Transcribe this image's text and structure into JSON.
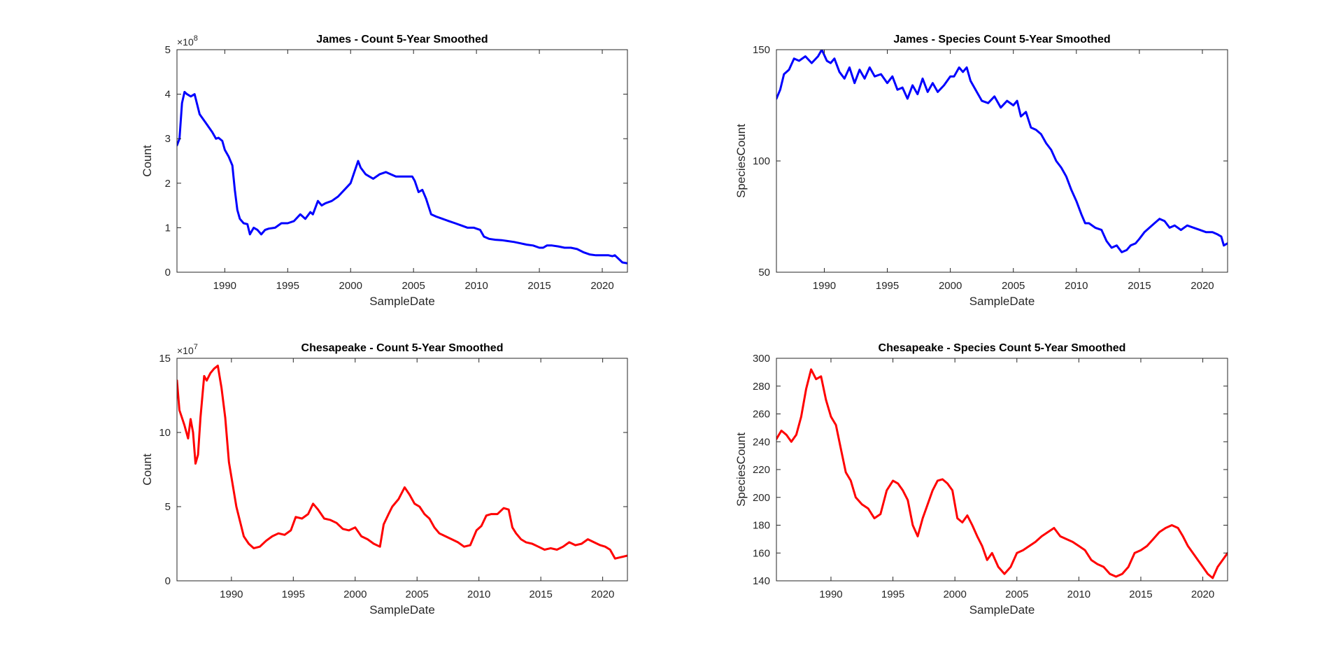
{
  "figure": {
    "background": "#ffffff",
    "axis_color": "#262626"
  },
  "chart_data": [
    {
      "type": "line",
      "title": "James - Count 5-Year Smoothed",
      "xlabel": "SampleDate",
      "ylabel": "Count",
      "xlim": [
        1986.2,
        2022.0
      ],
      "ylim": [
        0,
        5
      ],
      "y_multiplier": "×10^8",
      "y_multiplier_base": "×10",
      "y_multiplier_exp": "8",
      "xticks": [
        1990,
        1995,
        2000,
        2005,
        2010,
        2015,
        2020
      ],
      "xtick_labels": [
        "1990",
        "1995",
        "2000",
        "2005",
        "2010",
        "2015",
        "2020"
      ],
      "yticks": [
        0,
        1,
        2,
        3,
        4,
        5
      ],
      "ytick_labels": [
        "0",
        "1",
        "2",
        "3",
        "4",
        "5"
      ],
      "grid": false,
      "series": [
        {
          "color": "#0000ff",
          "x": [
            1986.2,
            1986.4,
            1986.6,
            1986.8,
            1987.0,
            1987.3,
            1987.6,
            1988.0,
            1988.5,
            1989.0,
            1989.3,
            1989.5,
            1989.8,
            1990.0,
            1990.3,
            1990.6,
            1990.8,
            1991.0,
            1991.2,
            1991.5,
            1991.8,
            1992.0,
            1992.3,
            1992.6,
            1992.9,
            1993.2,
            1993.5,
            1994.0,
            1994.5,
            1995.0,
            1995.5,
            1996.0,
            1996.4,
            1996.8,
            1997.0,
            1997.4,
            1997.7,
            1998.0,
            1998.5,
            1999.0,
            1999.5,
            2000.0,
            2000.3,
            2000.6,
            2000.8,
            2001.2,
            2001.5,
            2001.8,
            2002.3,
            2002.8,
            2003.2,
            2003.6,
            2004.0,
            2004.5,
            2004.9,
            2005.1,
            2005.4,
            2005.7,
            2006.0,
            2006.4,
            2006.8,
            2007.3,
            2007.8,
            2008.3,
            2008.8,
            2009.3,
            2009.8,
            2010.3,
            2010.6,
            2011.0,
            2011.5,
            2012.0,
            2012.5,
            2013.0,
            2013.5,
            2014.0,
            2014.5,
            2015.0,
            2015.3,
            2015.6,
            2016.0,
            2016.5,
            2017.0,
            2017.5,
            2018.0,
            2018.5,
            2019.0,
            2019.5,
            2020.0,
            2020.5,
            2020.8,
            2021.0,
            2021.3,
            2021.6,
            2022.0
          ],
          "y": [
            2.85,
            3.0,
            3.8,
            4.05,
            4.0,
            3.95,
            4.0,
            3.55,
            3.35,
            3.15,
            3.0,
            3.02,
            2.95,
            2.75,
            2.6,
            2.4,
            1.85,
            1.4,
            1.2,
            1.1,
            1.08,
            0.85,
            1.0,
            0.95,
            0.85,
            0.95,
            0.98,
            1.0,
            1.1,
            1.1,
            1.15,
            1.3,
            1.2,
            1.35,
            1.3,
            1.6,
            1.5,
            1.55,
            1.6,
            1.7,
            1.85,
            2.0,
            2.25,
            2.5,
            2.35,
            2.2,
            2.15,
            2.1,
            2.2,
            2.25,
            2.2,
            2.15,
            2.15,
            2.15,
            2.15,
            2.05,
            1.8,
            1.85,
            1.65,
            1.3,
            1.25,
            1.2,
            1.15,
            1.1,
            1.05,
            1.0,
            1.0,
            0.95,
            0.8,
            0.75,
            0.73,
            0.72,
            0.7,
            0.68,
            0.65,
            0.62,
            0.6,
            0.55,
            0.55,
            0.6,
            0.6,
            0.58,
            0.55,
            0.55,
            0.52,
            0.45,
            0.4,
            0.38,
            0.38,
            0.38,
            0.36,
            0.38,
            0.3,
            0.22,
            0.2
          ]
        }
      ]
    },
    {
      "type": "line",
      "title": "James - Species Count 5-Year Smoothed",
      "xlabel": "SampleDate",
      "ylabel": "SpeciesCount",
      "xlim": [
        1986.2,
        2022.0
      ],
      "ylim": [
        50,
        150
      ],
      "xticks": [
        1990,
        1995,
        2000,
        2005,
        2010,
        2015,
        2020
      ],
      "xtick_labels": [
        "1990",
        "1995",
        "2000",
        "2005",
        "2010",
        "2015",
        "2020"
      ],
      "yticks": [
        50,
        100,
        150
      ],
      "ytick_labels": [
        "50",
        "100",
        "150"
      ],
      "grid": false,
      "series": [
        {
          "color": "#0000ff",
          "x": [
            1986.2,
            1986.5,
            1986.8,
            1987.2,
            1987.6,
            1988.0,
            1988.5,
            1989.0,
            1989.5,
            1989.8,
            1990.2,
            1990.5,
            1990.8,
            1991.2,
            1991.6,
            1992.0,
            1992.4,
            1992.8,
            1993.2,
            1993.6,
            1994.0,
            1994.5,
            1995.0,
            1995.4,
            1995.8,
            1996.2,
            1996.6,
            1997.0,
            1997.4,
            1997.8,
            1998.2,
            1998.6,
            1999.0,
            1999.5,
            2000.0,
            2000.3,
            2000.7,
            2001.0,
            2001.3,
            2001.6,
            2002.0,
            2002.5,
            2003.0,
            2003.5,
            2004.0,
            2004.5,
            2005.0,
            2005.3,
            2005.6,
            2006.0,
            2006.4,
            2006.8,
            2007.2,
            2007.6,
            2008.0,
            2008.4,
            2008.8,
            2009.2,
            2009.6,
            2010.0,
            2010.4,
            2010.7,
            2011.0,
            2011.5,
            2012.0,
            2012.4,
            2012.8,
            2013.2,
            2013.6,
            2014.0,
            2014.3,
            2014.7,
            2015.0,
            2015.4,
            2015.8,
            2016.2,
            2016.6,
            2017.0,
            2017.4,
            2017.8,
            2018.3,
            2018.8,
            2019.3,
            2019.8,
            2020.3,
            2020.8,
            2021.2,
            2021.5,
            2021.7,
            2022.0
          ],
          "y": [
            128,
            132,
            139,
            141,
            146,
            145,
            147,
            144,
            147,
            150,
            145,
            144,
            146,
            140,
            137,
            142,
            135,
            141,
            137,
            142,
            138,
            139,
            135,
            138,
            132,
            133,
            128,
            134,
            130,
            137,
            131,
            135,
            131,
            134,
            138,
            138,
            142,
            140,
            142,
            136,
            132,
            127,
            126,
            129,
            124,
            127,
            125,
            127,
            120,
            122,
            115,
            114,
            112,
            108,
            105,
            100,
            97,
            93,
            87,
            82,
            76,
            72,
            72,
            70,
            69,
            64,
            61,
            62,
            59,
            60,
            62,
            63,
            65,
            68,
            70,
            72,
            74,
            73,
            70,
            71,
            69,
            71,
            70,
            69,
            68,
            68,
            67,
            66,
            62,
            63
          ]
        }
      ]
    },
    {
      "type": "line",
      "title": "Chesapeake - Count 5-Year Smoothed",
      "xlabel": "SampleDate",
      "ylabel": "Count",
      "xlim": [
        1985.6,
        2022.0
      ],
      "ylim": [
        0,
        15
      ],
      "y_multiplier": "×10^7",
      "y_multiplier_base": "×10",
      "y_multiplier_exp": "7",
      "xticks": [
        1990,
        1995,
        2000,
        2005,
        2010,
        2015,
        2020
      ],
      "xtick_labels": [
        "1990",
        "1995",
        "2000",
        "2005",
        "2010",
        "2015",
        "2020"
      ],
      "yticks": [
        0,
        5,
        10,
        15
      ],
      "ytick_labels": [
        "0",
        "5",
        "10",
        "15"
      ],
      "grid": false,
      "series": [
        {
          "color": "#ff0000",
          "x": [
            1985.6,
            1985.8,
            1986.0,
            1986.2,
            1986.5,
            1986.7,
            1986.9,
            1987.1,
            1987.3,
            1987.5,
            1987.8,
            1988.0,
            1988.3,
            1988.6,
            1988.9,
            1989.2,
            1989.5,
            1989.8,
            1990.1,
            1990.4,
            1990.7,
            1991.0,
            1991.4,
            1991.8,
            1992.3,
            1992.8,
            1993.3,
            1993.8,
            1994.3,
            1994.8,
            1995.2,
            1995.7,
            1996.2,
            1996.6,
            1997.0,
            1997.5,
            1998.0,
            1998.5,
            1999.0,
            1999.5,
            2000.0,
            2000.5,
            2001.0,
            2001.5,
            2002.0,
            2002.3,
            2002.7,
            2003.0,
            2003.5,
            2004.0,
            2004.4,
            2004.8,
            2005.2,
            2005.6,
            2006.0,
            2006.4,
            2006.8,
            2007.3,
            2007.8,
            2008.3,
            2008.8,
            2009.3,
            2009.8,
            2010.2,
            2010.6,
            2011.0,
            2011.5,
            2012.0,
            2012.4,
            2012.7,
            2013.0,
            2013.4,
            2013.8,
            2014.3,
            2014.8,
            2015.3,
            2015.8,
            2016.3,
            2016.8,
            2017.3,
            2017.8,
            2018.3,
            2018.8,
            2019.3,
            2019.8,
            2020.2,
            2020.6,
            2021.0,
            2021.5,
            2022.0
          ],
          "y": [
            13.5,
            11.5,
            11.0,
            10.5,
            9.6,
            10.9,
            10.0,
            7.9,
            8.5,
            11.0,
            13.8,
            13.5,
            14.0,
            14.3,
            14.5,
            13.0,
            11.0,
            8.0,
            6.5,
            5.0,
            4.0,
            3.0,
            2.5,
            2.2,
            2.3,
            2.7,
            3.0,
            3.2,
            3.1,
            3.4,
            4.3,
            4.2,
            4.5,
            5.2,
            4.8,
            4.2,
            4.1,
            3.9,
            3.5,
            3.4,
            3.6,
            3.0,
            2.8,
            2.5,
            2.3,
            3.8,
            4.5,
            5.0,
            5.5,
            6.3,
            5.8,
            5.2,
            5.0,
            4.5,
            4.2,
            3.6,
            3.2,
            3.0,
            2.8,
            2.6,
            2.3,
            2.4,
            3.4,
            3.7,
            4.4,
            4.5,
            4.5,
            4.9,
            4.8,
            3.6,
            3.2,
            2.8,
            2.6,
            2.5,
            2.3,
            2.1,
            2.2,
            2.1,
            2.3,
            2.6,
            2.4,
            2.5,
            2.8,
            2.6,
            2.4,
            2.3,
            2.1,
            1.5,
            1.6,
            1.7
          ]
        }
      ]
    },
    {
      "type": "line",
      "title": "Chesapeake - Species Count 5-Year Smoothed",
      "xlabel": "SampleDate",
      "ylabel": "SpeciesCount",
      "xlim": [
        1985.6,
        2022.0
      ],
      "ylim": [
        140,
        300
      ],
      "xticks": [
        1990,
        1995,
        2000,
        2005,
        2010,
        2015,
        2020
      ],
      "xtick_labels": [
        "1990",
        "1995",
        "2000",
        "2005",
        "2010",
        "2015",
        "2020"
      ],
      "yticks": [
        140,
        160,
        180,
        200,
        220,
        240,
        260,
        280,
        300
      ],
      "ytick_labels": [
        "140",
        "160",
        "180",
        "200",
        "220",
        "240",
        "260",
        "280",
        "300"
      ],
      "grid": false,
      "series": [
        {
          "color": "#ff0000",
          "x": [
            1985.6,
            1986.0,
            1986.4,
            1986.8,
            1987.2,
            1987.6,
            1988.0,
            1988.4,
            1988.8,
            1989.2,
            1989.6,
            1990.0,
            1990.4,
            1990.8,
            1991.2,
            1991.6,
            1992.0,
            1992.5,
            1993.0,
            1993.5,
            1994.0,
            1994.5,
            1995.0,
            1995.4,
            1995.8,
            1996.2,
            1996.6,
            1997.0,
            1997.4,
            1997.8,
            1998.2,
            1998.6,
            1999.0,
            1999.4,
            1999.8,
            2000.2,
            2000.6,
            2001.0,
            2001.4,
            2001.8,
            2002.2,
            2002.6,
            2003.0,
            2003.5,
            2004.0,
            2004.5,
            2005.0,
            2005.5,
            2006.0,
            2006.5,
            2007.0,
            2007.5,
            2008.0,
            2008.5,
            2009.0,
            2009.5,
            2010.0,
            2010.5,
            2011.0,
            2011.5,
            2012.0,
            2012.5,
            2013.0,
            2013.5,
            2014.0,
            2014.5,
            2015.0,
            2015.5,
            2016.0,
            2016.5,
            2017.0,
            2017.5,
            2018.0,
            2018.4,
            2018.8,
            2019.2,
            2019.6,
            2020.0,
            2020.4,
            2020.8,
            2021.2,
            2021.6,
            2022.0
          ],
          "y": [
            242,
            248,
            245,
            240,
            245,
            258,
            278,
            292,
            285,
            287,
            270,
            258,
            252,
            235,
            218,
            212,
            200,
            195,
            192,
            185,
            188,
            205,
            212,
            210,
            205,
            198,
            180,
            172,
            185,
            195,
            205,
            212,
            213,
            210,
            205,
            185,
            182,
            187,
            180,
            172,
            165,
            155,
            160,
            150,
            145,
            150,
            160,
            162,
            165,
            168,
            172,
            175,
            178,
            172,
            170,
            168,
            165,
            162,
            155,
            152,
            150,
            145,
            143,
            145,
            150,
            160,
            162,
            165,
            170,
            175,
            178,
            180,
            178,
            172,
            165,
            160,
            155,
            150,
            145,
            142,
            150,
            155,
            160
          ]
        }
      ]
    }
  ]
}
